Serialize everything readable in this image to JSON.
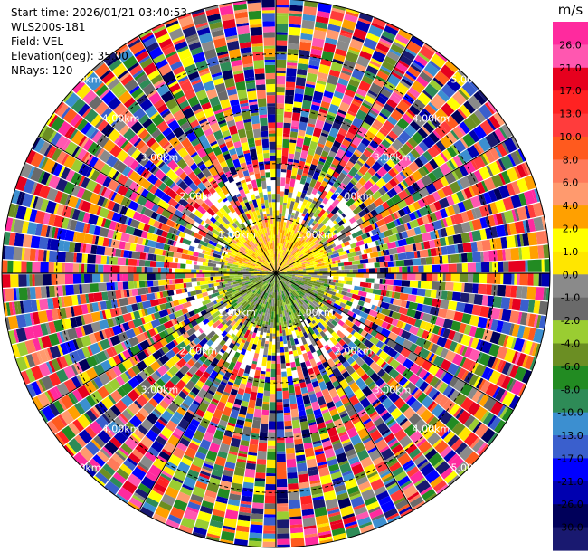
{
  "info": {
    "start_time": "Start time: 2026/01/21 03:40:53",
    "site": "WLS200s-181",
    "field": "Field: VEL",
    "elevation": "Elevation(deg): 35.00",
    "nrays": "NRays: 120"
  },
  "chart_data": {
    "type": "heatmap",
    "projection": "polar-ppi",
    "field": "VEL",
    "nrays": 120,
    "range_rings_km": [
      1.0,
      2.0,
      3.0,
      4.0,
      5.0
    ],
    "ring_labels": [
      "1.00km",
      "2.00km",
      "3.00km",
      "4.00km",
      "5.00km"
    ],
    "max_range_km": 5.0,
    "colorbar": {
      "unit": "m/s",
      "ticks": [
        "26.0",
        "21.0",
        "17.0",
        "13.0",
        "10.0",
        "8.0",
        "6.0",
        "4.0",
        "2.0",
        "1.0",
        "0.0",
        "-1.0",
        "-2.0",
        "-4.0",
        "-6.0",
        "-8.0",
        "-10.0",
        "-13.0",
        "-17.0",
        "-21.0",
        "-26.0",
        "-30.0"
      ],
      "colors": [
        "#ff2a9e",
        "#ff57b0",
        "#e6001e",
        "#ff2222",
        "#ff3c3c",
        "#ff5a1e",
        "#ff7a5a",
        "#ff9a6e",
        "#ffa000",
        "#ffff00",
        "#ffe600",
        "#8a8a8a",
        "#6a6a6a",
        "#9acd32",
        "#6b8e23",
        "#228b22",
        "#2e8b57",
        "#3c8fd0",
        "#3a5fcd",
        "#0000ff",
        "#0000b0",
        "#00005a",
        "#191970"
      ]
    }
  }
}
